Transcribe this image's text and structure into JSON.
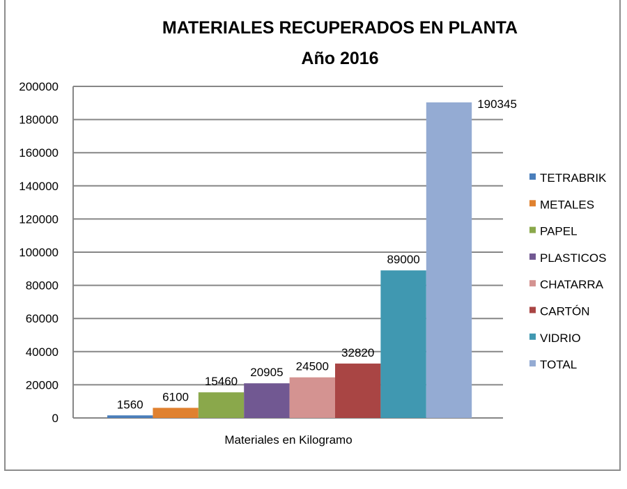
{
  "chart_data": {
    "type": "bar",
    "title": "MATERIALES RECUPERADOS EN PLANTA",
    "subtitle": "Año 2016",
    "xlabel": "Materiales en Kilogramo",
    "ylabel": "",
    "ylim": [
      0,
      200000
    ],
    "yticks": [
      "0",
      "20000",
      "40000",
      "60000",
      "80000",
      "100000",
      "120000",
      "140000",
      "160000",
      "180000",
      "200000"
    ],
    "grid": true,
    "legend_position": "right",
    "series": [
      {
        "name": "TETRABRIK",
        "value": 1560,
        "label": "1560",
        "color": "#4a7ebb"
      },
      {
        "name": "METALES",
        "value": 6100,
        "label": "6100",
        "color": "#e0812f"
      },
      {
        "name": "PAPEL",
        "value": 15460,
        "label": "15460",
        "color": "#8aa84b"
      },
      {
        "name": "PLASTICOS",
        "value": 20905,
        "label": "20905",
        "color": "#715892"
      },
      {
        "name": "CHATARRA",
        "value": 24500,
        "label": "24500",
        "color": "#d49391"
      },
      {
        "name": "CARTÓN",
        "value": 32820,
        "label": "32820",
        "color": "#a94544"
      },
      {
        "name": "VIDRIO",
        "value": 89000,
        "label": "89000",
        "color": "#4098b1"
      },
      {
        "name": "TOTAL",
        "value": 190345,
        "label": "190345",
        "color": "#94abd3"
      }
    ]
  }
}
